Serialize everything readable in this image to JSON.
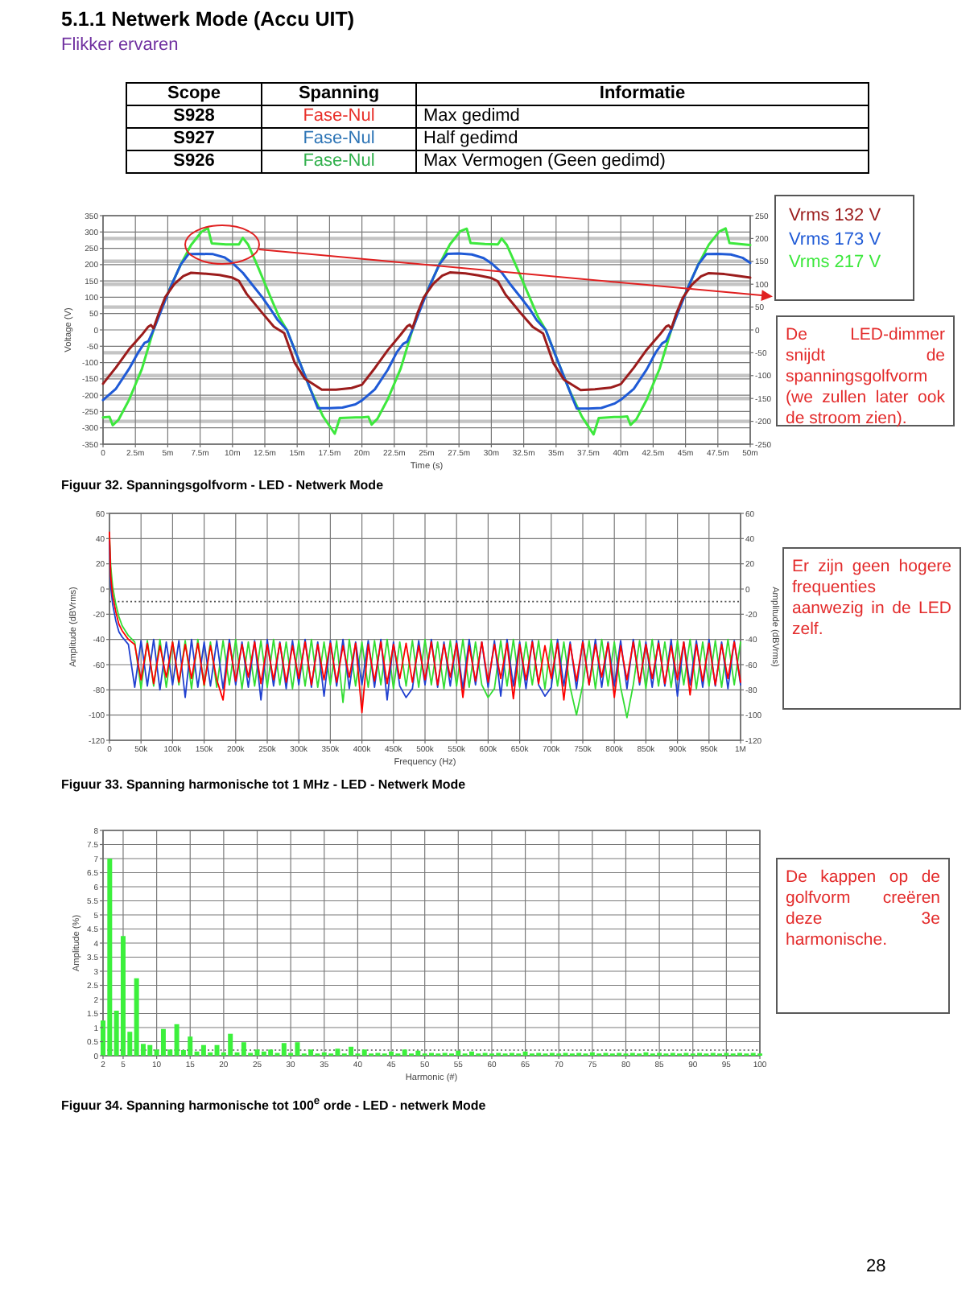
{
  "chart_data": [
    {
      "type": "other",
      "title": "5.1.1 Netwerk Mode (Accu UIT)",
      "subtitle": "Flikker ervaren",
      "annotations": [
        "Scope",
        "Spanning",
        "Informatie",
        "S928",
        "Fase-Nul",
        "Max gedimd",
        "S927",
        "Fase-Nul",
        "Half gedimd",
        "S926",
        "Fase-Nul",
        "Max Vermogen (Geen gedimd)"
      ],
      "colors": [
        "#e8302a",
        "#2e75b6",
        "#33b14e"
      ]
    },
    {
      "type": "line",
      "xlabel": "Time (s)",
      "ylabel": "Voltage (V)",
      "xlim": [
        0,
        50
      ],
      "xticks": [
        0,
        {
          "value": 2.5,
          "label": "2.5m"
        },
        {
          "value": 5,
          "label": "5m"
        },
        {
          "value": 7.5,
          "label": "7.5m"
        },
        {
          "value": 10,
          "label": "10m"
        },
        {
          "value": 12.5,
          "label": "12.5m"
        },
        {
          "value": 15,
          "label": "15m"
        },
        {
          "value": 17.5,
          "label": "17.5m"
        },
        {
          "value": 20,
          "label": "20m"
        },
        {
          "value": 22.5,
          "label": "22.5m"
        },
        {
          "value": 25,
          "label": "25m"
        },
        {
          "value": 27.5,
          "label": "27.5m"
        },
        {
          "value": 30,
          "label": "30m"
        },
        {
          "value": 32.5,
          "label": "32.5m"
        },
        {
          "value": 35,
          "label": "35m"
        },
        {
          "value": 37.5,
          "label": "37.5m"
        },
        {
          "value": 40,
          "label": "40m"
        },
        {
          "value": 42.5,
          "label": "42.5m"
        },
        {
          "value": 45,
          "label": "45m"
        },
        {
          "value": 47.5,
          "label": "47.5m"
        },
        {
          "value": 50,
          "label": "50m"
        }
      ],
      "ylim": [
        -350,
        350
      ],
      "yticks": [
        -350,
        -300,
        -250,
        -200,
        -150,
        -100,
        -50,
        0,
        50,
        100,
        150,
        200,
        250,
        300,
        350
      ],
      "y2lim": [
        -250,
        250
      ],
      "y2ticks": [
        -250,
        -200,
        -150,
        -100,
        -50,
        0,
        50,
        100,
        150,
        200,
        250
      ],
      "grid": true,
      "legend": "top right",
      "series": [
        {
          "name": "Vrms 132 V",
          "color": "#9b1c1c",
          "x": [
            0,
            1,
            2,
            3,
            3.5,
            3.7,
            3.9,
            4.3,
            4.8,
            5.5,
            6.2,
            6.8,
            8,
            9,
            10,
            10.5,
            11.1,
            12.3,
            13.2,
            14,
            14.8,
            15.6,
            16.9,
            18,
            19.2,
            20,
            21,
            22,
            23,
            23.5,
            23.7,
            23.9,
            24.3,
            24.8,
            25.5,
            26.2,
            26.8,
            28,
            29,
            30,
            30.5,
            31.1,
            32.3,
            33.2,
            34,
            34.8,
            35.6,
            36.9,
            38,
            39.2,
            40,
            41,
            42,
            43,
            43.5,
            43.7,
            43.9,
            44.3,
            44.8,
            45.5,
            46.2,
            46.8,
            48,
            49,
            50
          ],
          "values": [
            -165,
            -115,
            -60,
            -15,
            10,
            15,
            5,
            50,
            100,
            140,
            165,
            175,
            172,
            168,
            160,
            150,
            110,
            52,
            10,
            -10,
            -100,
            -150,
            -183,
            -183,
            -178,
            -168,
            -117,
            -62,
            -14,
            11,
            16,
            5,
            52,
            101,
            141,
            166,
            176,
            173,
            167,
            159,
            149,
            108,
            50,
            9,
            -11,
            -102,
            -152,
            -184,
            -182,
            -177,
            -166,
            -116,
            -61,
            -15,
            10,
            14,
            4,
            51,
            99,
            139,
            164,
            174,
            171,
            166,
            160
          ]
        },
        {
          "name": "Vrms 173 V",
          "color": "#1f5ad6",
          "x": [
            0,
            1,
            2,
            2.7,
            3.2,
            3.5,
            3.9,
            4.5,
            5.2,
            6,
            6.6,
            7.5,
            8.5,
            9.4,
            10,
            10.8,
            11.5,
            12.3,
            13,
            13.5,
            14.2,
            15,
            16,
            16.6,
            17.5,
            18.5,
            19.5,
            20,
            21,
            22,
            22.7,
            23.2,
            23.5,
            23.9,
            24.5,
            25.2,
            26,
            26.6,
            27.5,
            28.5,
            29.4,
            30,
            30.8,
            31.5,
            32.3,
            33,
            33.5,
            34.2,
            35,
            36,
            36.6,
            37.5,
            38.5,
            39.5,
            40,
            41,
            42,
            42.7,
            43.2,
            43.5,
            43.9,
            44.5,
            45.2,
            46,
            46.6,
            47.5,
            48.5,
            49.4,
            50
          ],
          "values": [
            -215,
            -180,
            -120,
            -70,
            -40,
            -35,
            0,
            60,
            130,
            200,
            232,
            233,
            232,
            222,
            205,
            175,
            140,
            100,
            60,
            30,
            0,
            -80,
            -180,
            -240,
            -240,
            -238,
            -228,
            -216,
            -182,
            -122,
            -68,
            -42,
            -36,
            0,
            62,
            132,
            202,
            233,
            234,
            231,
            220,
            204,
            176,
            138,
            98,
            62,
            30,
            0,
            -82,
            -182,
            -241,
            -241,
            -239,
            -226,
            -214,
            -181,
            -121,
            -69,
            -41,
            -34,
            0,
            61,
            131,
            201,
            232,
            233,
            231,
            221,
            205
          ]
        },
        {
          "name": "Vrms 217 V",
          "color": "#3de83d",
          "x": [
            0,
            0.5,
            0.75,
            1.2,
            2,
            3,
            3.9,
            4.5,
            5.2,
            6,
            6.8,
            7.6,
            8.1,
            8.4,
            9.5,
            10.5,
            10.8,
            11.2,
            12,
            13,
            13.6,
            14.2,
            15,
            16,
            17,
            17.9,
            18.3,
            19.5,
            20,
            20.5,
            20.75,
            21.2,
            22,
            23,
            23.9,
            24.5,
            25.2,
            26,
            26.8,
            27.6,
            28.1,
            28.4,
            29.5,
            30.5,
            30.8,
            31.2,
            32,
            33,
            33.6,
            34.2,
            35,
            36,
            37,
            37.9,
            38.3,
            39.5,
            40,
            40.5,
            40.75,
            41.2,
            42,
            43,
            43.9,
            44.5,
            45.2,
            46,
            46.8,
            47.6,
            48.1,
            48.4,
            49.5,
            50
          ],
          "values": [
            -268,
            -266,
            -292,
            -275,
            -215,
            -120,
            0,
            65,
            130,
            200,
            260,
            300,
            312,
            265,
            262,
            262,
            282,
            262,
            190,
            95,
            40,
            0,
            -80,
            -180,
            -265,
            -318,
            -270,
            -268,
            -268,
            -266,
            -290,
            -272,
            -212,
            -118,
            0,
            66,
            132,
            202,
            262,
            302,
            310,
            266,
            263,
            262,
            280,
            260,
            188,
            96,
            40,
            0,
            -82,
            -182,
            -266,
            -320,
            -270,
            -267,
            -267,
            -265,
            -291,
            -274,
            -214,
            -119,
            0,
            64,
            131,
            201,
            261,
            301,
            311,
            266,
            262,
            260
          ]
        }
      ],
      "annotations": [
        "Figuur 32. Spanningsgolfvorm - LED - Netwerk Mode",
        "De LED-dimmer snijdt de spanningsgolfvorm (we zullen later ook de stroom zien)."
      ]
    },
    {
      "type": "line",
      "xlabel": "Frequency (Hz)",
      "ylabel": "Amplitude (dBVrms)",
      "y2label": "Amplitude (dBVrms)",
      "xlim": [
        0,
        1000000
      ],
      "xticks": [
        0,
        {
          "value": 50000,
          "label": "50k"
        },
        {
          "value": 100000,
          "label": "100k"
        },
        {
          "value": 150000,
          "label": "150k"
        },
        {
          "value": 200000,
          "label": "200k"
        },
        {
          "value": 250000,
          "label": "250k"
        },
        {
          "value": 300000,
          "label": "300k"
        },
        {
          "value": 350000,
          "label": "350k"
        },
        {
          "value": 400000,
          "label": "400k"
        },
        {
          "value": 450000,
          "label": "450k"
        },
        {
          "value": 500000,
          "label": "500k"
        },
        {
          "value": 550000,
          "label": "550k"
        },
        {
          "value": 600000,
          "label": "600k"
        },
        {
          "value": 650000,
          "label": "650k"
        },
        {
          "value": 700000,
          "label": "700k"
        },
        {
          "value": 750000,
          "label": "750k"
        },
        {
          "value": 800000,
          "label": "800k"
        },
        {
          "value": 850000,
          "label": "850k"
        },
        {
          "value": 900000,
          "label": "900k"
        },
        {
          "value": 950000,
          "label": "950k"
        },
        {
          "value": 1000000,
          "label": "1M"
        }
      ],
      "ylim": [
        -120,
        60
      ],
      "yticks": [
        -120,
        -100,
        -80,
        -60,
        -40,
        -20,
        0,
        20,
        40,
        60
      ],
      "y2lim": [
        -120,
        60
      ],
      "y2ticks": [
        -120,
        -100,
        -80,
        -60,
        -40,
        -20,
        0,
        20,
        40,
        60
      ],
      "grid": true,
      "ref_lines": [
        {
          "axis": "y",
          "value": -10,
          "line_style": "dotted",
          "color": "#555555"
        }
      ],
      "x": [
        0,
        2000,
        5000,
        10000,
        15000,
        20000,
        30000,
        40000,
        50000,
        60000,
        70000,
        80000,
        90000,
        100000,
        110000,
        120000,
        130000,
        140000,
        150000,
        160000,
        170000,
        180000,
        190000,
        200000,
        210000,
        220000,
        230000,
        240000,
        250000,
        260000,
        270000,
        280000,
        290000,
        300000,
        310000,
        320000,
        330000,
        340000,
        350000,
        360000,
        370000,
        380000,
        390000,
        400000,
        410000,
        420000,
        430000,
        440000,
        450000,
        460000,
        470000,
        480000,
        490000,
        500000,
        510000,
        520000,
        530000,
        540000,
        550000,
        560000,
        570000,
        580000,
        590000,
        600000,
        610000,
        620000,
        630000,
        640000,
        650000,
        660000,
        670000,
        680000,
        690000,
        700000,
        710000,
        720000,
        730000,
        740000,
        750000,
        760000,
        770000,
        780000,
        790000,
        800000,
        810000,
        820000,
        830000,
        840000,
        850000,
        860000,
        870000,
        880000,
        890000,
        900000,
        910000,
        920000,
        930000,
        940000,
        950000,
        960000,
        970000,
        980000,
        990000,
        1000000
      ],
      "series": [
        {
          "color": "#ff0000",
          "values": [
            45,
            10,
            -5,
            -18,
            -28,
            -33,
            -40,
            -44,
            -72,
            -43,
            -75,
            -45,
            -70,
            -42,
            -74,
            -44,
            -71,
            -43,
            -76,
            -45,
            -72,
            -88,
            -43,
            -73,
            -44,
            -70,
            -42,
            -75,
            -44,
            -72,
            -43,
            -74,
            -45,
            -71,
            -42,
            -76,
            -44,
            -72,
            -43,
            -74,
            -45,
            -70,
            -43,
            -98,
            -44,
            -73,
            -42,
            -75,
            -44,
            -71,
            -43,
            -74,
            -45,
            -72,
            -42,
            -76,
            -44,
            -70,
            -43,
            -86,
            -45,
            -73,
            -42,
            -74,
            -44,
            -71,
            -43,
            -87,
            -44,
            -72,
            -42,
            -75,
            -45,
            -71,
            -43,
            -88,
            -44,
            -73,
            -42,
            -76,
            -44,
            -70,
            -43,
            -86,
            -45,
            -72,
            -42,
            -74,
            -44,
            -71,
            -43,
            -75,
            -45,
            -72,
            -42,
            -84,
            -44,
            -73,
            -43,
            -76,
            -44,
            -71,
            -42,
            -74
          ]
        },
        {
          "color": "#2040d0",
          "values": [
            38,
            2,
            -12,
            -25,
            -34,
            -38,
            -44,
            -78,
            -41,
            -77,
            -40,
            -80,
            -42,
            -76,
            -41,
            -86,
            -40,
            -78,
            -42,
            -77,
            -41,
            -79,
            -40,
            -76,
            -42,
            -78,
            -41,
            -88,
            -40,
            -77,
            -42,
            -79,
            -41,
            -76,
            -40,
            -78,
            -42,
            -85,
            -41,
            -77,
            -40,
            -79,
            -42,
            -76,
            -41,
            -78,
            -40,
            -88,
            -42,
            -77,
            -86,
            -79,
            -41,
            -76,
            -40,
            -78,
            -42,
            -77,
            -41,
            -79,
            -40,
            -76,
            -42,
            -78,
            -41,
            -85,
            -40,
            -77,
            -42,
            -79,
            -41,
            -76,
            -85,
            -78,
            -40,
            -77,
            -42,
            -79,
            -41,
            -76,
            -40,
            -78,
            -42,
            -77,
            -41,
            -79,
            -40,
            -76,
            -42,
            -78,
            -41,
            -77,
            -40,
            -85,
            -42,
            -76,
            -41,
            -78,
            -40,
            -77,
            -42,
            -79,
            -41,
            -76
          ]
        },
        {
          "color": "#33dd33",
          "values": [
            41,
            18,
            2,
            -12,
            -22,
            -29,
            -37,
            -42,
            -79,
            -41,
            -77,
            -40,
            -78,
            -42,
            -76,
            -41,
            -79,
            -40,
            -77,
            -42,
            -78,
            -41,
            -76,
            -40,
            -79,
            -42,
            -77,
            -41,
            -78,
            -40,
            -76,
            -42,
            -79,
            -41,
            -77,
            -40,
            -78,
            -42,
            -76,
            -41,
            -90,
            -40,
            -77,
            -42,
            -78,
            -41,
            -76,
            -40,
            -79,
            -42,
            -77,
            -41,
            -78,
            -40,
            -76,
            -42,
            -79,
            -41,
            -77,
            -40,
            -78,
            -42,
            -76,
            -86,
            -79,
            -41,
            -77,
            -40,
            -78,
            -42,
            -76,
            -41,
            -79,
            -40,
            -77,
            -42,
            -78,
            -100,
            -76,
            -41,
            -79,
            -40,
            -77,
            -42,
            -78,
            -102,
            -76,
            -41,
            -79,
            -40,
            -77,
            -42,
            -78,
            -41,
            -76,
            -40,
            -79,
            -42,
            -77,
            -41,
            -78,
            -40,
            -76,
            -42
          ]
        }
      ],
      "annotations": [
        "Figuur 33. Spanning harmonische tot 1 MHz - LED - Netwerk Mode",
        "Er zijn geen hogere frequenties aanwezig in de LED zelf."
      ]
    },
    {
      "type": "bar",
      "xlabel": "Harmonic (#)",
      "ylabel": "Amplitude (%)",
      "xlim": [
        2,
        100
      ],
      "xticks": [
        2,
        5,
        10,
        15,
        20,
        25,
        30,
        35,
        40,
        45,
        50,
        55,
        60,
        65,
        70,
        75,
        80,
        85,
        90,
        95,
        100
      ],
      "ylim": [
        0,
        8
      ],
      "yticks": [
        0,
        0.5,
        1,
        1.5,
        2,
        2.5,
        3,
        3.5,
        4,
        4.5,
        5,
        5.5,
        6,
        6.5,
        7,
        7.5,
        8
      ],
      "grid": true,
      "ref_lines": [
        {
          "axis": "y",
          "value": 0.2,
          "line_style": "dotted",
          "color": "#555555"
        }
      ],
      "x": [
        2,
        3,
        4,
        5,
        6,
        7,
        8,
        9,
        10,
        11,
        12,
        13,
        14,
        15,
        16,
        17,
        18,
        19,
        20,
        21,
        22,
        23,
        24,
        25,
        26,
        27,
        28,
        29,
        30,
        31,
        32,
        33,
        34,
        35,
        36,
        37,
        38,
        39,
        40,
        41,
        42,
        43,
        44,
        45,
        46,
        47,
        48,
        49,
        50,
        51,
        52,
        53,
        54,
        55,
        56,
        57,
        58,
        59,
        60,
        61,
        62,
        63,
        64,
        65,
        66,
        67,
        68,
        69,
        70,
        71,
        72,
        73,
        74,
        75,
        76,
        77,
        78,
        79,
        80,
        81,
        82,
        83,
        84,
        85,
        86,
        87,
        88,
        89,
        90,
        91,
        92,
        93,
        94,
        95,
        96,
        97,
        98,
        99,
        100
      ],
      "values": [
        1.25,
        7,
        1.6,
        4.25,
        0.85,
        2.75,
        0.42,
        0.38,
        0.22,
        0.95,
        0.22,
        1.12,
        0.2,
        0.68,
        0.15,
        0.38,
        0.12,
        0.38,
        0.12,
        0.78,
        0.12,
        0.48,
        0.1,
        0.22,
        0.15,
        0.22,
        0.1,
        0.45,
        0.1,
        0.48,
        0.08,
        0.22,
        0.08,
        0.12,
        0.08,
        0.25,
        0.08,
        0.32,
        0.08,
        0.22,
        0.08,
        0.1,
        0.08,
        0.15,
        0.08,
        0.22,
        0.08,
        0.18,
        0.08,
        0.1,
        0.08,
        0.1,
        0.08,
        0.18,
        0.08,
        0.15,
        0.08,
        0.1,
        0.08,
        0.1,
        0.08,
        0.1,
        0.08,
        0.15,
        0.08,
        0.1,
        0.08,
        0.1,
        0.08,
        0.1,
        0.08,
        0.1,
        0.08,
        0.12,
        0.08,
        0.1,
        0.08,
        0.1,
        0.08,
        0.1,
        0.08,
        0.12,
        0.08,
        0.1,
        0.08,
        0.1,
        0.08,
        0.1,
        0.08,
        0.1,
        0.08,
        0.1,
        0.08,
        0.1,
        0.08,
        0.1,
        0.08,
        0.1,
        0.08
      ],
      "color": "#3cf03c",
      "annotations": [
        "Figuur 34. Spanning harmonische tot 100$^{e}$ orde - LED - netwerk Mode",
        "De kappen op de golfvorm creëren deze 3e harmonische.",
        "28"
      ]
    }
  ]
}
